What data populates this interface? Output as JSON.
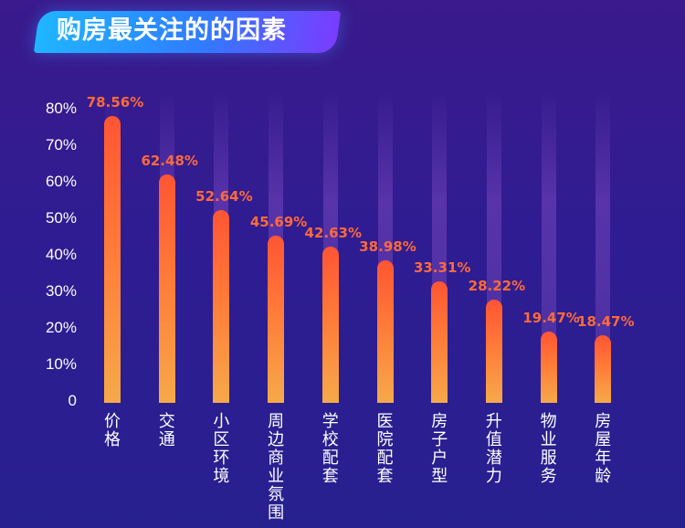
{
  "title": "购房最关注的的因素",
  "chart_data": {
    "type": "bar",
    "title": "购房最关注的的因素",
    "categories": [
      "价格",
      "交通",
      "小区环境",
      "周边商业氛围",
      "学校配套",
      "医院配套",
      "房子户型",
      "升值潜力",
      "物业服务",
      "房屋年龄"
    ],
    "values": [
      78.56,
      62.48,
      52.64,
      45.69,
      42.63,
      38.98,
      33.31,
      28.22,
      19.47,
      18.47
    ],
    "value_labels": [
      "78.56%",
      "62.48%",
      "52.64%",
      "45.69%",
      "42.63%",
      "38.98%",
      "33.31%",
      "28.22%",
      "19.47%",
      "18.47%"
    ],
    "y_ticks": [
      "0",
      "10%",
      "20%",
      "30%",
      "40%",
      "50%",
      "60%",
      "70%",
      "80%"
    ],
    "ylim": [
      0,
      80
    ],
    "xlabel": "",
    "ylabel": "",
    "grid": false,
    "colors": {
      "bar_top": "#ff5533",
      "bar_bottom": "#f6a94a",
      "label": "#ff6a3a"
    }
  }
}
